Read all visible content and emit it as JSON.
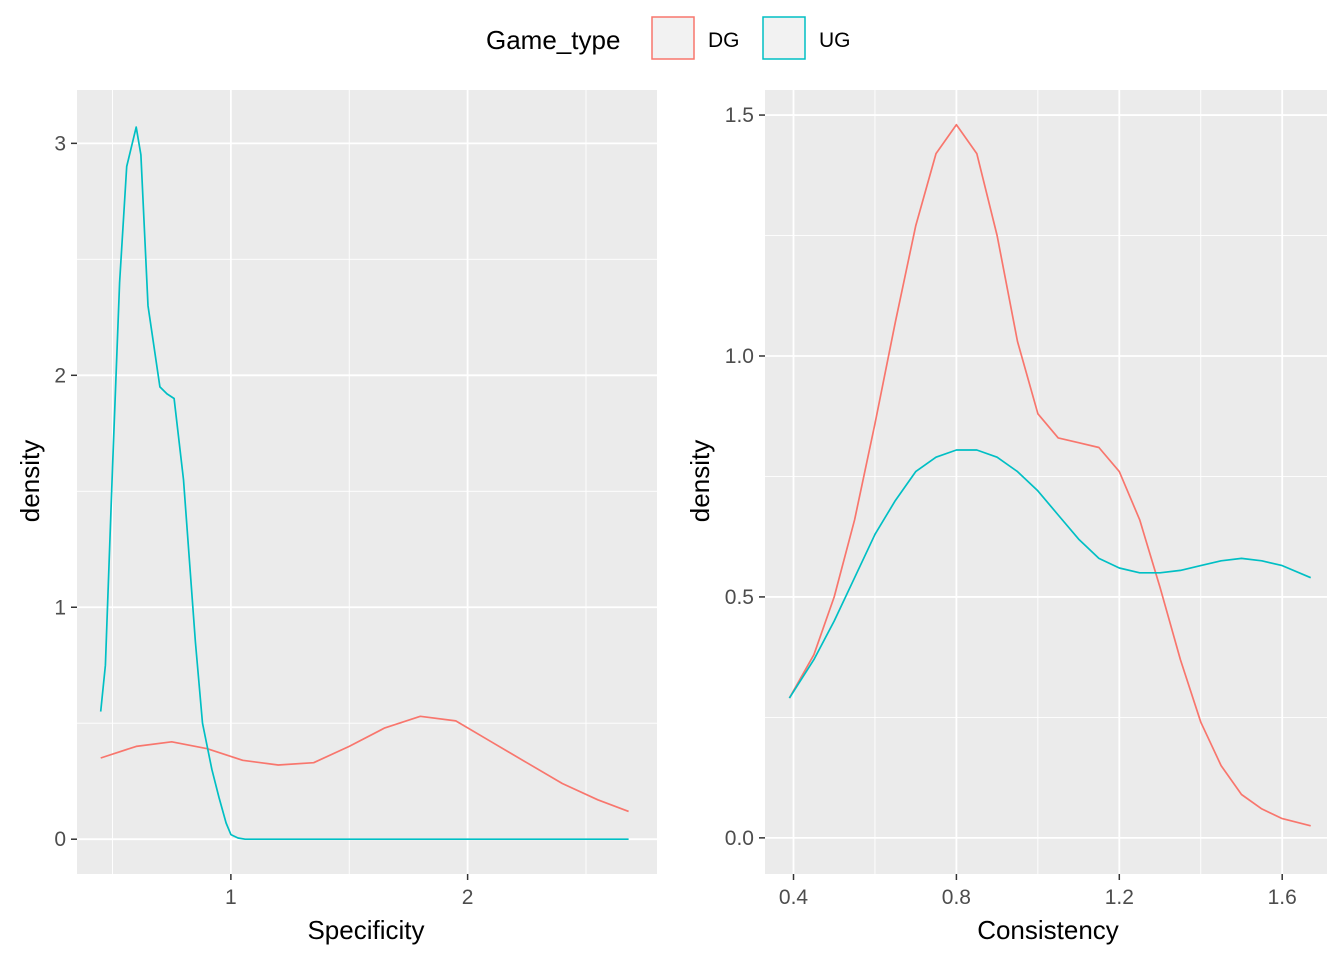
{
  "legend": {
    "title": "Game_type",
    "items": [
      {
        "label": "DG",
        "color": "#F8766D"
      },
      {
        "label": "UG",
        "color": "#00BFC4"
      }
    ]
  },
  "chart_data": [
    {
      "type": "line",
      "xlabel": "Specificity",
      "ylabel": "density",
      "xlim": [
        0.35,
        2.8
      ],
      "ylim": [
        -0.15,
        3.23
      ],
      "xticks": [
        1,
        2
      ],
      "xtick_labels": [
        "1",
        "2"
      ],
      "xminor": [
        0.5,
        1.5,
        2.5
      ],
      "yticks": [
        0,
        1,
        2,
        3
      ],
      "ytick_labels": [
        "0",
        "1",
        "2",
        "3"
      ],
      "yminor": [
        0.5,
        1.5,
        2.5
      ],
      "grid": true,
      "series": [
        {
          "name": "DG",
          "color": "#F8766D",
          "x": [
            0.45,
            0.6,
            0.75,
            0.9,
            1.05,
            1.2,
            1.35,
            1.5,
            1.65,
            1.8,
            1.95,
            2.1,
            2.25,
            2.4,
            2.55,
            2.68
          ],
          "y": [
            0.35,
            0.4,
            0.42,
            0.39,
            0.34,
            0.32,
            0.33,
            0.4,
            0.48,
            0.53,
            0.51,
            0.42,
            0.33,
            0.24,
            0.17,
            0.12
          ]
        },
        {
          "name": "UG",
          "color": "#00BFC4",
          "x": [
            0.45,
            0.47,
            0.5,
            0.53,
            0.56,
            0.6,
            0.62,
            0.65,
            0.7,
            0.73,
            0.76,
            0.8,
            0.85,
            0.88,
            0.92,
            0.95,
            0.98,
            1.0,
            1.03,
            1.06,
            1.1,
            1.2,
            1.5,
            2.0,
            2.5,
            2.68
          ],
          "y": [
            0.55,
            0.75,
            1.6,
            2.4,
            2.9,
            3.07,
            2.95,
            2.3,
            1.95,
            1.92,
            1.9,
            1.55,
            0.85,
            0.5,
            0.3,
            0.18,
            0.07,
            0.02,
            0.005,
            0.0,
            0.0,
            0.0,
            0.0,
            0.0,
            0.0,
            0.0
          ]
        }
      ]
    },
    {
      "type": "line",
      "xlabel": "Consistency",
      "ylabel": "density",
      "xlim": [
        0.33,
        1.71
      ],
      "ylim": [
        -0.075,
        1.552
      ],
      "xticks": [
        0.4,
        0.8,
        1.2,
        1.6
      ],
      "xtick_labels": [
        "0.4",
        "0.8",
        "1.2",
        "1.6"
      ],
      "xminor": [
        0.6,
        1.0,
        1.4
      ],
      "yticks": [
        0.0,
        0.5,
        1.0,
        1.5
      ],
      "ytick_labels": [
        "0.0",
        "0.5",
        "1.0",
        "1.5"
      ],
      "yminor": [
        0.25,
        0.75,
        1.25
      ],
      "grid": true,
      "series": [
        {
          "name": "DG",
          "color": "#F8766D",
          "x": [
            0.39,
            0.45,
            0.5,
            0.55,
            0.6,
            0.65,
            0.7,
            0.75,
            0.8,
            0.85,
            0.9,
            0.95,
            1.0,
            1.05,
            1.1,
            1.15,
            1.2,
            1.25,
            1.3,
            1.35,
            1.4,
            1.45,
            1.5,
            1.55,
            1.6,
            1.67
          ],
          "y": [
            0.29,
            0.38,
            0.5,
            0.66,
            0.86,
            1.07,
            1.27,
            1.42,
            1.48,
            1.42,
            1.25,
            1.03,
            0.88,
            0.83,
            0.82,
            0.81,
            0.76,
            0.66,
            0.52,
            0.37,
            0.24,
            0.15,
            0.09,
            0.06,
            0.04,
            0.025
          ]
        },
        {
          "name": "UG",
          "color": "#00BFC4",
          "x": [
            0.39,
            0.45,
            0.5,
            0.55,
            0.6,
            0.65,
            0.7,
            0.75,
            0.8,
            0.85,
            0.9,
            0.95,
            1.0,
            1.05,
            1.1,
            1.15,
            1.2,
            1.25,
            1.3,
            1.35,
            1.4,
            1.45,
            1.5,
            1.55,
            1.6,
            1.67
          ],
          "y": [
            0.29,
            0.37,
            0.45,
            0.54,
            0.63,
            0.7,
            0.76,
            0.79,
            0.805,
            0.805,
            0.79,
            0.76,
            0.72,
            0.67,
            0.62,
            0.58,
            0.56,
            0.55,
            0.55,
            0.555,
            0.565,
            0.575,
            0.58,
            0.575,
            0.565,
            0.54
          ]
        }
      ]
    }
  ]
}
